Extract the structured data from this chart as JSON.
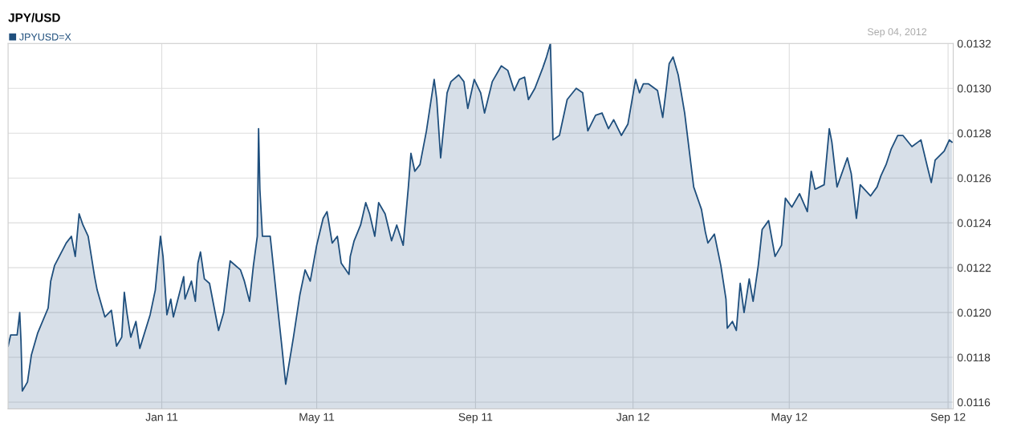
{
  "chart_data": {
    "type": "area",
    "title": "JPY/USD",
    "annotations": [
      "Sep 04, 2012"
    ],
    "legend": "top left",
    "grid": true,
    "xlim": [
      "2010-09-04",
      "2012-09-05"
    ],
    "xticks": [
      {
        "value": "2011-01-01",
        "label": "Jan 11"
      },
      {
        "value": "2011-05-01",
        "label": "May 11"
      },
      {
        "value": "2011-09-01",
        "label": "Sep 11"
      },
      {
        "value": "2012-01-01",
        "label": "Jan 12"
      },
      {
        "value": "2012-05-01",
        "label": "May 12"
      },
      {
        "value": "2012-09-01",
        "label": "Sep 12"
      }
    ],
    "ylim": [
      0.01157,
      0.0132
    ],
    "yticks": [
      0.0116,
      0.0118,
      {
        "value": 0.012,
        "label": "0.0120"
      },
      0.0122,
      0.0124,
      0.0126,
      0.0128,
      {
        "value": 0.013,
        "label": "0.0130"
      },
      0.0132
    ],
    "x": [
      "2010-09-04",
      "2010-09-06",
      "2010-09-11",
      "2010-09-13",
      "2010-09-14",
      "2010-09-15",
      "2010-09-19",
      "2010-09-22",
      "2010-09-27",
      "2010-10-05",
      "2010-10-07",
      "2010-10-10",
      "2010-10-19",
      "2010-10-23",
      "2010-10-26",
      "2010-10-29",
      "2010-11-01",
      "2010-11-05",
      "2010-11-10",
      "2010-11-12",
      "2010-11-18",
      "2010-11-23",
      "2010-11-27",
      "2010-12-01",
      "2010-12-03",
      "2010-12-05",
      "2010-12-08",
      "2010-12-12",
      "2010-12-15",
      "2010-12-23",
      "2010-12-27",
      "2010-12-31",
      "2011-01-02",
      "2011-01-05",
      "2011-01-08",
      "2011-01-10",
      "2011-01-18",
      "2011-01-19",
      "2011-01-24",
      "2011-01-27",
      "2011-01-29",
      "2011-01-31",
      "2011-02-03",
      "2011-02-07",
      "2011-02-14",
      "2011-02-18",
      "2011-02-23",
      "2011-03-03",
      "2011-03-06",
      "2011-03-10",
      "2011-03-13",
      "2011-03-16",
      "2011-03-17",
      "2011-03-18",
      "2011-03-20",
      "2011-03-26",
      "2011-04-01",
      "2011-04-04",
      "2011-04-07",
      "2011-04-13",
      "2011-04-18",
      "2011-04-22",
      "2011-04-26",
      "2011-05-01",
      "2011-05-06",
      "2011-05-09",
      "2011-05-13",
      "2011-05-17",
      "2011-05-20",
      "2011-05-26",
      "2011-05-27",
      "2011-05-30",
      "2011-06-04",
      "2011-06-08",
      "2011-06-11",
      "2011-06-15",
      "2011-06-18",
      "2011-06-23",
      "2011-06-28",
      "2011-07-02",
      "2011-07-07",
      "2011-07-11",
      "2011-07-13",
      "2011-07-16",
      "2011-07-20",
      "2011-07-25",
      "2011-07-31",
      "2011-08-02",
      "2011-08-05",
      "2011-08-10",
      "2011-08-13",
      "2011-08-19",
      "2011-08-23",
      "2011-08-26",
      "2011-08-31",
      "2011-09-05",
      "2011-09-08",
      "2011-09-14",
      "2011-09-21",
      "2011-09-26",
      "2011-10-01",
      "2011-10-05",
      "2011-10-09",
      "2011-10-12",
      "2011-10-17",
      "2011-10-23",
      "2011-10-26",
      "2011-10-29",
      "2011-10-30",
      "2011-10-31",
      "2011-11-05",
      "2011-11-11",
      "2011-11-18",
      "2011-11-23",
      "2011-11-27",
      "2011-12-03",
      "2011-12-08",
      "2011-12-13",
      "2011-12-17",
      "2011-12-23",
      "2011-12-28",
      "2012-01-03",
      "2012-01-06",
      "2012-01-09",
      "2012-01-13",
      "2012-01-20",
      "2012-01-24",
      "2012-01-27",
      "2012-01-29",
      "2012-02-01",
      "2012-02-05",
      "2012-02-10",
      "2012-02-17",
      "2012-02-23",
      "2012-02-26",
      "2012-02-28",
      "2012-03-04",
      "2012-03-09",
      "2012-03-13",
      "2012-03-14",
      "2012-03-18",
      "2012-03-21",
      "2012-03-24",
      "2012-03-27",
      "2012-03-31",
      "2012-04-03",
      "2012-04-07",
      "2012-04-10",
      "2012-04-15",
      "2012-04-20",
      "2012-04-25",
      "2012-04-28",
      "2012-05-03",
      "2012-05-09",
      "2012-05-15",
      "2012-05-18",
      "2012-05-21",
      "2012-05-28",
      "2012-06-01",
      "2012-06-03",
      "2012-06-07",
      "2012-06-15",
      "2012-06-18",
      "2012-06-22",
      "2012-06-25",
      "2012-07-03",
      "2012-07-08",
      "2012-07-11",
      "2012-07-15",
      "2012-07-19",
      "2012-07-24",
      "2012-07-28",
      "2012-08-04",
      "2012-08-11",
      "2012-08-16",
      "2012-08-19",
      "2012-08-22",
      "2012-08-29",
      "2012-09-02",
      "2012-09-04"
    ],
    "series": [
      {
        "name": "JPYUSD=X",
        "color": "#1f4f7d",
        "values": [
          0.01185,
          0.0119,
          0.0119,
          0.012,
          0.01187,
          0.01165,
          0.01169,
          0.01181,
          0.01191,
          0.01202,
          0.01214,
          0.01221,
          0.01231,
          0.01234,
          0.01225,
          0.01244,
          0.01239,
          0.01234,
          0.01216,
          0.0121,
          0.01198,
          0.01201,
          0.01185,
          0.01189,
          0.01209,
          0.012,
          0.01189,
          0.01196,
          0.01184,
          0.01199,
          0.0121,
          0.01234,
          0.01225,
          0.01199,
          0.01206,
          0.01198,
          0.01216,
          0.01206,
          0.01214,
          0.01205,
          0.01222,
          0.01227,
          0.01215,
          0.01213,
          0.01192,
          0.012,
          0.01223,
          0.01219,
          0.01214,
          0.01205,
          0.01221,
          0.01234,
          0.01282,
          0.01255,
          0.01234,
          0.01234,
          0.01201,
          0.01185,
          0.01168,
          0.01189,
          0.01208,
          0.01219,
          0.01214,
          0.0123,
          0.01242,
          0.01245,
          0.01231,
          0.01234,
          0.01222,
          0.01217,
          0.01225,
          0.01232,
          0.01239,
          0.01249,
          0.01244,
          0.01234,
          0.01249,
          0.01244,
          0.01232,
          0.01239,
          0.0123,
          0.01256,
          0.01271,
          0.01263,
          0.01266,
          0.01281,
          0.01304,
          0.01295,
          0.01269,
          0.01298,
          0.01303,
          0.01306,
          0.01303,
          0.01291,
          0.01304,
          0.01298,
          0.01289,
          0.01303,
          0.0131,
          0.01308,
          0.01299,
          0.01304,
          0.01305,
          0.01295,
          0.013,
          0.01309,
          0.01314,
          0.0132,
          0.01299,
          0.01277,
          0.01279,
          0.01295,
          0.013,
          0.01298,
          0.01281,
          0.01288,
          0.01289,
          0.01282,
          0.01286,
          0.01279,
          0.01284,
          0.01304,
          0.01298,
          0.01302,
          0.01302,
          0.01299,
          0.01287,
          0.01301,
          0.01311,
          0.01314,
          0.01306,
          0.01289,
          0.01256,
          0.01246,
          0.01236,
          0.01231,
          0.01235,
          0.01221,
          0.01206,
          0.01193,
          0.01196,
          0.01192,
          0.01213,
          0.012,
          0.01215,
          0.01205,
          0.01221,
          0.01237,
          0.01241,
          0.01225,
          0.0123,
          0.01251,
          0.01247,
          0.01253,
          0.01245,
          0.01263,
          0.01255,
          0.01257,
          0.01282,
          0.01276,
          0.01256,
          0.01269,
          0.01262,
          0.01242,
          0.01257,
          0.01252,
          0.01256,
          0.01261,
          0.01266,
          0.01273,
          0.01279,
          0.01279,
          0.01274,
          0.01277,
          0.01265,
          0.01258,
          0.01268,
          0.01272,
          0.01277,
          0.01276
        ]
      }
    ]
  }
}
